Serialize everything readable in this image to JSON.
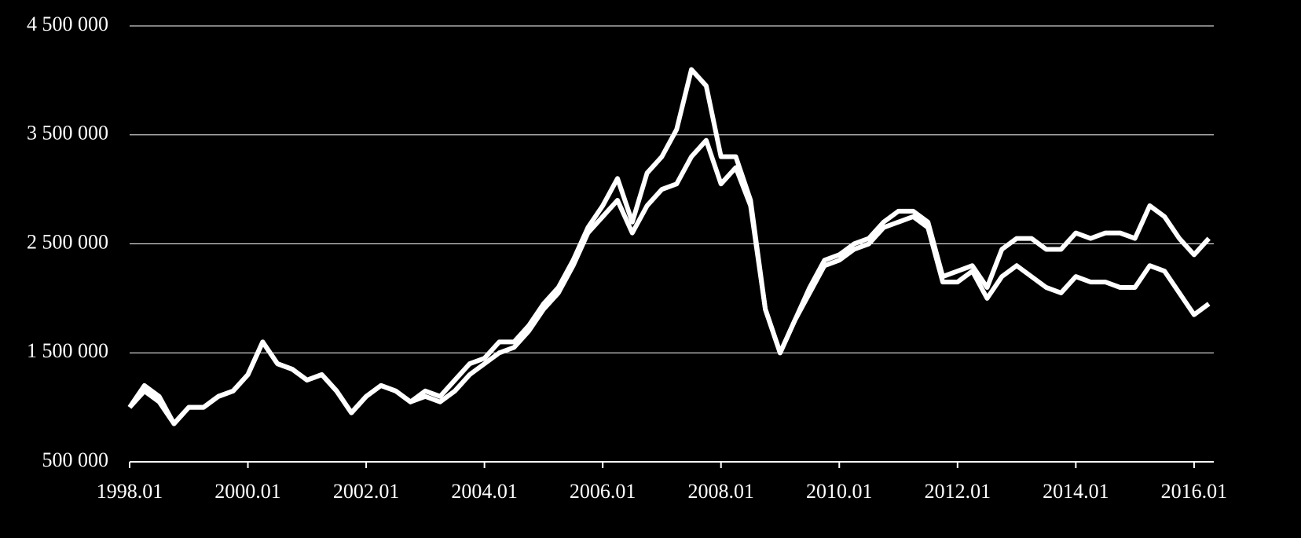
{
  "chart_data": {
    "type": "line",
    "x": [
      "1998.01",
      "1998.04",
      "1998.07",
      "1998.10",
      "1999.01",
      "1999.04",
      "1999.07",
      "1999.10",
      "2000.01",
      "2000.04",
      "2000.07",
      "2000.10",
      "2001.01",
      "2001.04",
      "2001.07",
      "2001.10",
      "2002.01",
      "2002.04",
      "2002.07",
      "2002.10",
      "2003.01",
      "2003.04",
      "2003.07",
      "2003.10",
      "2004.01",
      "2004.04",
      "2004.07",
      "2004.10",
      "2005.01",
      "2005.04",
      "2005.07",
      "2005.10",
      "2006.01",
      "2006.04",
      "2006.07",
      "2006.10",
      "2007.01",
      "2007.04",
      "2007.07",
      "2007.10",
      "2008.01",
      "2008.04",
      "2008.07",
      "2008.10",
      "2009.01",
      "2009.04",
      "2009.07",
      "2009.10",
      "2010.01",
      "2010.04",
      "2010.07",
      "2010.10",
      "2011.01",
      "2011.04",
      "2011.07",
      "2011.10",
      "2012.01",
      "2012.04",
      "2012.07",
      "2012.10",
      "2013.01",
      "2013.04",
      "2013.07",
      "2013.10",
      "2014.01",
      "2014.04",
      "2014.07",
      "2014.10",
      "2015.01",
      "2015.04",
      "2015.07",
      "2015.10",
      "2016.01",
      "2016.04"
    ],
    "series": [
      {
        "color": "#ffffff",
        "values": [
          1000000,
          1200000,
          1100000,
          850000,
          1000000,
          1000000,
          1100000,
          1150000,
          1300000,
          1600000,
          1400000,
          1350000,
          1250000,
          1300000,
          1150000,
          950000,
          1100000,
          1200000,
          1150000,
          1050000,
          1150000,
          1100000,
          1250000,
          1400000,
          1450000,
          1600000,
          1600000,
          1750000,
          1950000,
          2100000,
          2350000,
          2650000,
          2850000,
          3100000,
          2700000,
          3150000,
          3300000,
          3550000,
          4100000,
          3950000,
          3300000,
          3300000,
          2900000,
          1900000,
          1500000,
          1800000,
          2100000,
          2350000,
          2400000,
          2500000,
          2550000,
          2700000,
          2800000,
          2800000,
          2700000,
          2200000,
          2250000,
          2300000,
          2100000,
          2450000,
          2550000,
          2550000,
          2450000,
          2450000,
          2600000,
          2550000,
          2600000,
          2600000,
          2550000,
          2850000,
          2750000,
          2550000,
          2400000,
          2550000
        ]
      },
      {
        "color": "#ffffff",
        "values": [
          1000000,
          1150000,
          1050000,
          850000,
          1000000,
          1000000,
          1100000,
          1150000,
          1300000,
          1600000,
          1400000,
          1350000,
          1250000,
          1300000,
          1150000,
          950000,
          1100000,
          1200000,
          1150000,
          1050000,
          1100000,
          1050000,
          1150000,
          1300000,
          1400000,
          1500000,
          1550000,
          1700000,
          1900000,
          2050000,
          2300000,
          2600000,
          2750000,
          2900000,
          2600000,
          2850000,
          3000000,
          3050000,
          3300000,
          3450000,
          3050000,
          3200000,
          2850000,
          1900000,
          1500000,
          1800000,
          2050000,
          2300000,
          2350000,
          2450000,
          2500000,
          2650000,
          2700000,
          2750000,
          2650000,
          2150000,
          2150000,
          2250000,
          2000000,
          2200000,
          2300000,
          2200000,
          2100000,
          2050000,
          2200000,
          2150000,
          2150000,
          2100000,
          2100000,
          2300000,
          2250000,
          2050000,
          1850000,
          1950000
        ]
      }
    ],
    "xlim": [
      "1998.01",
      "2016.05"
    ],
    "xticks": [
      "1998.01",
      "2000.01",
      "2002.01",
      "2004.01",
      "2006.01",
      "2008.01",
      "2010.01",
      "2012.01",
      "2014.01",
      "2016.01"
    ],
    "ylim": [
      500000,
      4500000
    ],
    "yticks": [
      {
        "value": 500000,
        "label": "500 000"
      },
      {
        "value": 1500000,
        "label": "1 500 000"
      },
      {
        "value": 2500000,
        "label": "2 500 000"
      },
      {
        "value": 3500000,
        "label": "3 500 000"
      },
      {
        "value": 4500000,
        "label": "4 500 000"
      }
    ],
    "grid": true
  }
}
